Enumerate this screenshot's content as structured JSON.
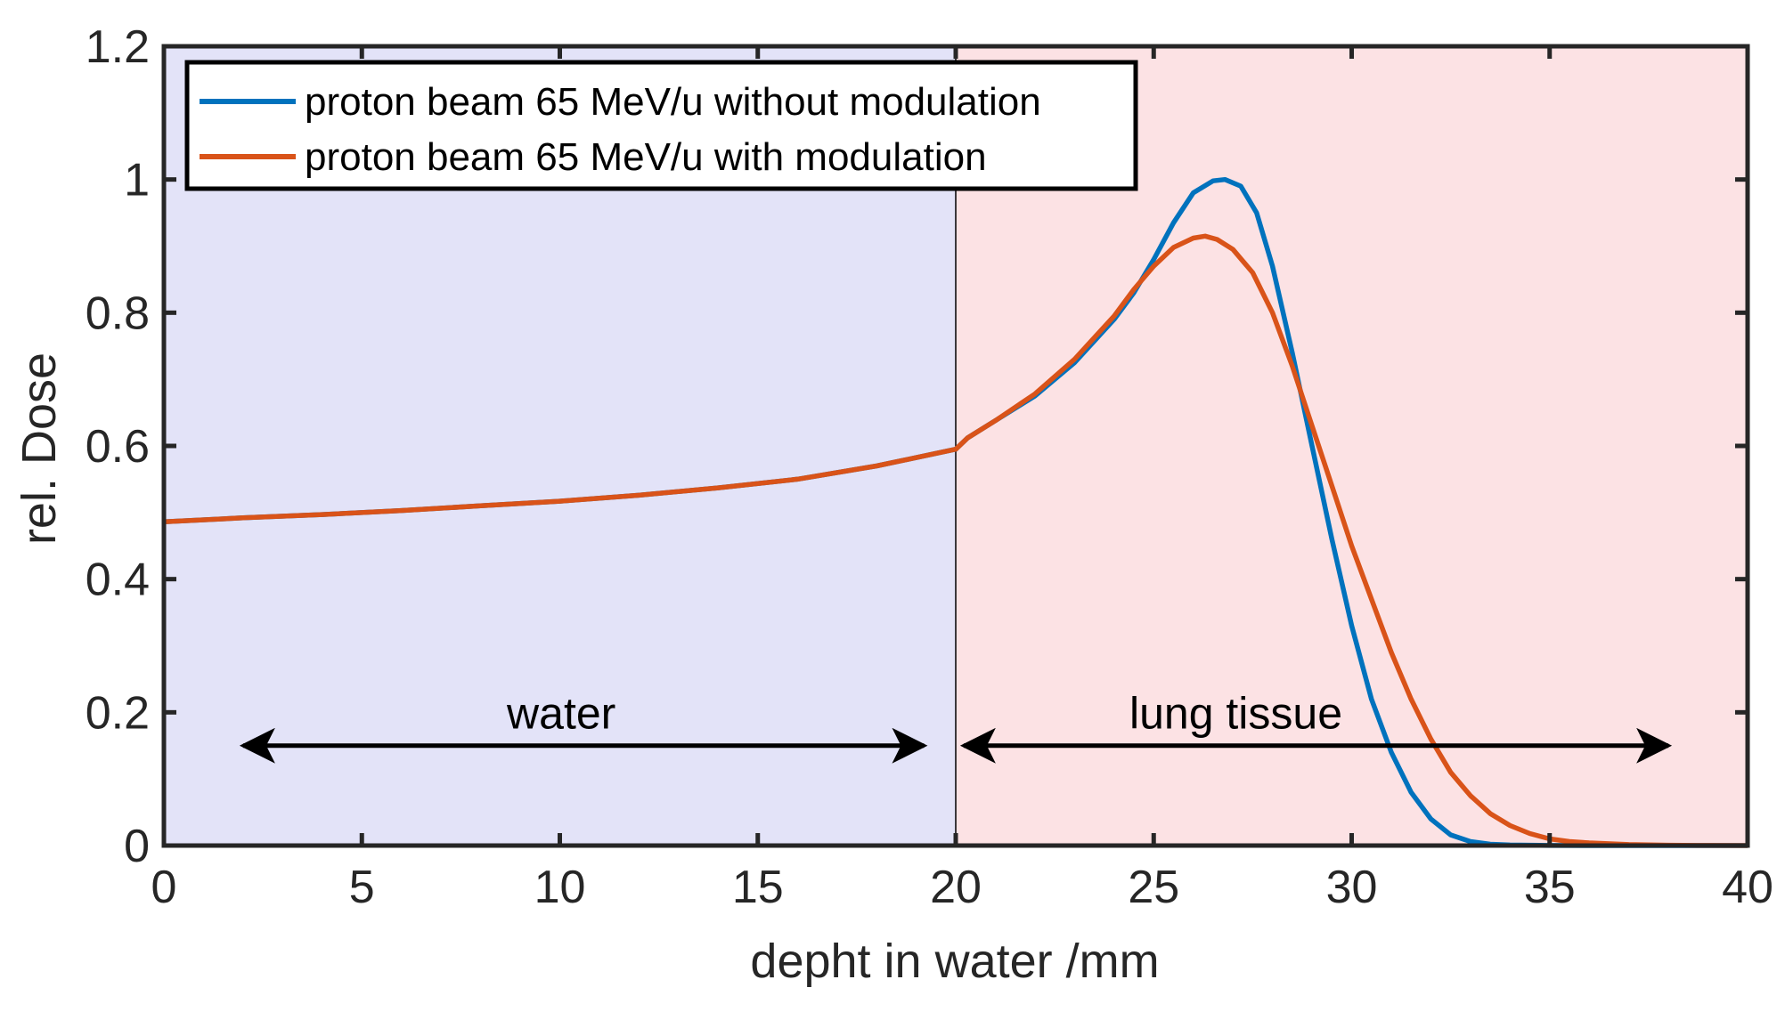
{
  "chart_data": {
    "type": "line",
    "title": "",
    "xlabel": "depht in water /mm",
    "ylabel": "rel. Dose",
    "xlim": [
      0,
      40
    ],
    "ylim": [
      0,
      1.2
    ],
    "xticks": [
      0,
      5,
      10,
      15,
      20,
      25,
      30,
      35,
      40
    ],
    "yticks": [
      0,
      0.2,
      0.4,
      0.6,
      0.8,
      1,
      1.2
    ],
    "xtick_labels": [
      "0",
      "5",
      "10",
      "15",
      "20",
      "25",
      "30",
      "35",
      "40"
    ],
    "ytick_labels": [
      "0",
      "0.2",
      "0.4",
      "0.6",
      "0.8",
      "1",
      "1.2"
    ],
    "grid": false,
    "legend_position": "top-left",
    "regions": [
      {
        "label": "water",
        "x_range": [
          0,
          20
        ],
        "color": "#e3e3f8",
        "arrow_range": [
          2,
          19.2
        ],
        "label_y": 0.2,
        "arrow_y": 0.15
      },
      {
        "label": "lung tissue",
        "x_range": [
          20,
          40
        ],
        "color": "#fce2e4",
        "arrow_range": [
          20.2,
          38
        ],
        "label_y": 0.2,
        "arrow_y": 0.15
      }
    ],
    "series": [
      {
        "name": "proton beam 65 MeV/u without modulation",
        "color": "#0072bd",
        "x": [
          0,
          2,
          4,
          6,
          8,
          10,
          12,
          14,
          16,
          18,
          20,
          20.3,
          21,
          22,
          23,
          24,
          24.5,
          25,
          25.5,
          26,
          26.5,
          26.8,
          27.2,
          27.6,
          28,
          28.5,
          29,
          29.5,
          30,
          30.5,
          31,
          31.5,
          32,
          32.5,
          33,
          33.5,
          34,
          35,
          36,
          38,
          40
        ],
        "y": [
          0.486,
          0.492,
          0.497,
          0.503,
          0.51,
          0.517,
          0.526,
          0.537,
          0.55,
          0.57,
          0.595,
          0.612,
          0.638,
          0.675,
          0.725,
          0.79,
          0.83,
          0.88,
          0.935,
          0.98,
          0.998,
          1.0,
          0.99,
          0.95,
          0.87,
          0.74,
          0.6,
          0.46,
          0.33,
          0.22,
          0.14,
          0.08,
          0.04,
          0.016,
          0.006,
          0.002,
          0.0008,
          0.0002,
          0,
          0,
          0
        ]
      },
      {
        "name": "proton beam 65 MeV/u with modulation",
        "color": "#d95319",
        "x": [
          0,
          2,
          4,
          6,
          8,
          10,
          12,
          14,
          16,
          18,
          20,
          20.3,
          21,
          22,
          23,
          24,
          24.5,
          25,
          25.5,
          26,
          26.3,
          26.6,
          27,
          27.5,
          28,
          28.5,
          29,
          29.5,
          30,
          30.5,
          31,
          31.5,
          32,
          32.5,
          33,
          33.5,
          34,
          34.5,
          35,
          35.5,
          36,
          37,
          38,
          39,
          40
        ],
        "y": [
          0.486,
          0.492,
          0.497,
          0.503,
          0.51,
          0.517,
          0.526,
          0.537,
          0.55,
          0.57,
          0.595,
          0.612,
          0.638,
          0.678,
          0.73,
          0.795,
          0.835,
          0.87,
          0.898,
          0.912,
          0.915,
          0.91,
          0.895,
          0.86,
          0.8,
          0.72,
          0.63,
          0.54,
          0.45,
          0.37,
          0.29,
          0.22,
          0.16,
          0.11,
          0.075,
          0.048,
          0.03,
          0.018,
          0.01,
          0.006,
          0.004,
          0.0015,
          0.0005,
          0.0002,
          0
        ]
      }
    ]
  }
}
